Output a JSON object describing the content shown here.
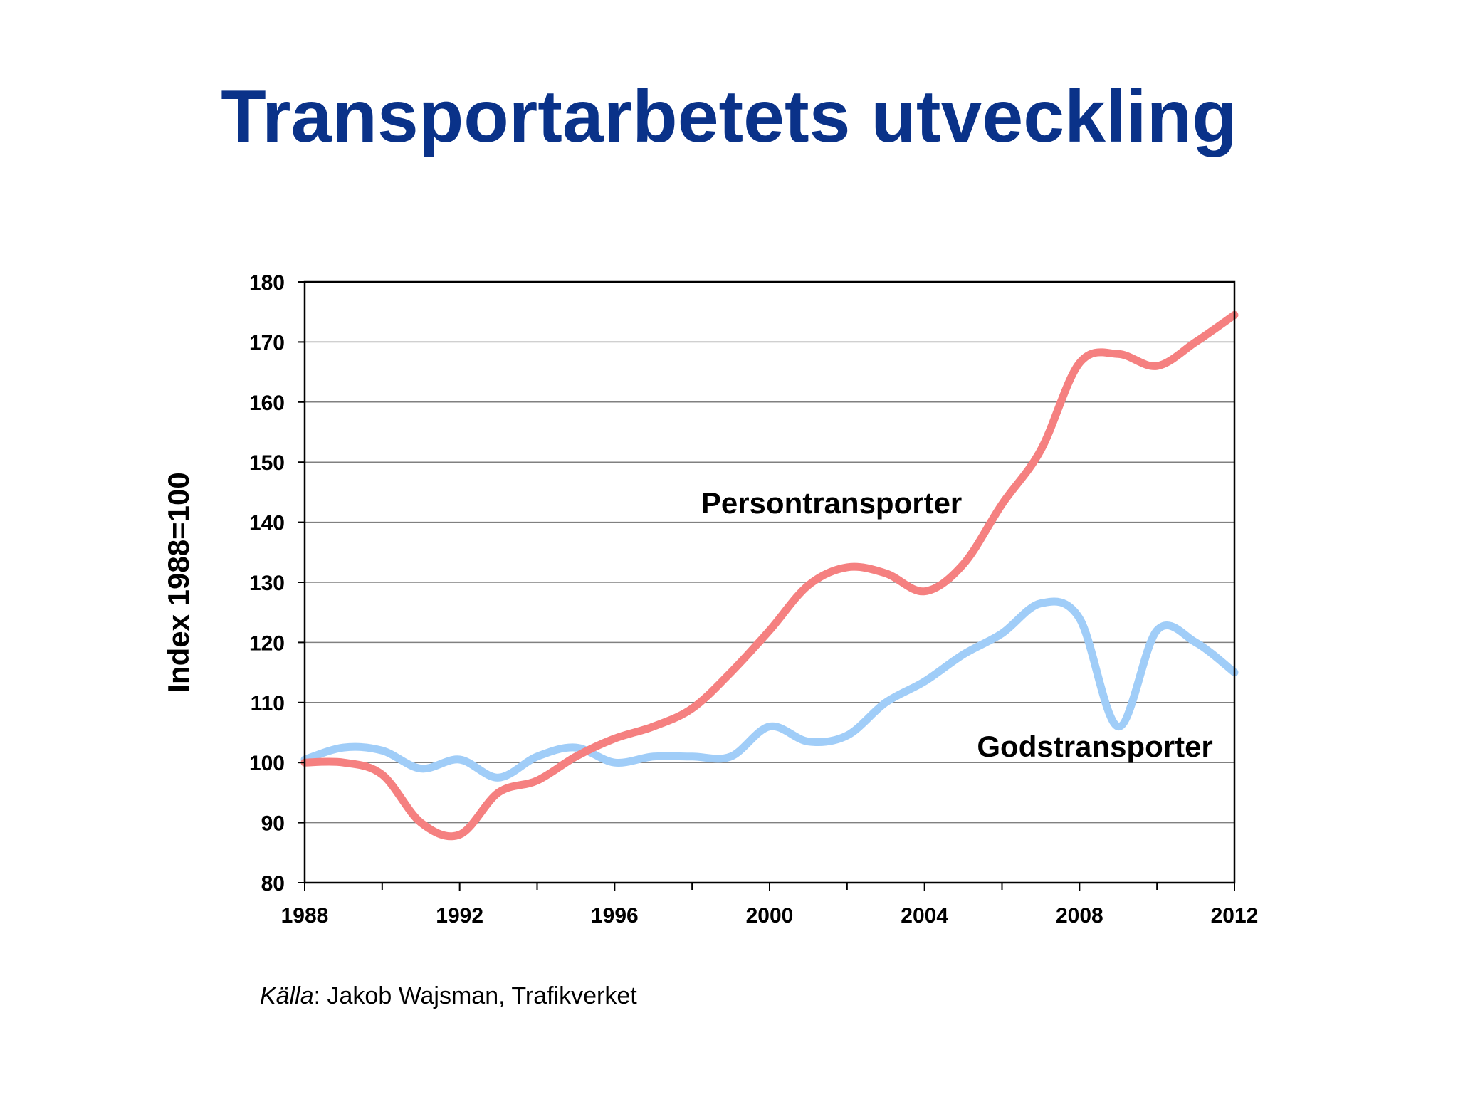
{
  "slide": {
    "title": "Transportarbetets utveckling",
    "source_label": "Källa",
    "source_separator": ": ",
    "source_text": "Jakob Wajsman, Trafikverket"
  },
  "colors": {
    "title": "#0a3289",
    "person_series": "#f58080",
    "goods_series": "#a0cdf8",
    "grid": "#808080",
    "axis": "#000000",
    "plot_background": "#ffffff"
  },
  "chart_data": {
    "type": "line",
    "title": "",
    "xlabel": "",
    "ylabel": "Index 1988=100",
    "xlim": [
      1988,
      2012
    ],
    "ylim": [
      80,
      180
    ],
    "x_ticks": [
      1988,
      1992,
      1996,
      2000,
      2004,
      2008,
      2012
    ],
    "x_minor_ticks": [
      1990,
      1994,
      1998,
      2002,
      2006,
      2010
    ],
    "y_ticks": [
      80,
      90,
      100,
      110,
      120,
      130,
      140,
      150,
      160,
      170,
      180
    ],
    "grid": true,
    "legend": "inline labels",
    "x": [
      1988,
      1989,
      1990,
      1991,
      1992,
      1993,
      1994,
      1995,
      1996,
      1997,
      1998,
      1999,
      2000,
      2001,
      2002,
      2003,
      2004,
      2005,
      2006,
      2007,
      2008,
      2009,
      2010,
      2011,
      2012
    ],
    "series": [
      {
        "name": "Persontransporter",
        "values": [
          100,
          100,
          98,
          90,
          88,
          95,
          97,
          101,
          104,
          106,
          109,
          115,
          122,
          129.5,
          132.5,
          131.5,
          128.5,
          133,
          143,
          152,
          166.5,
          168,
          166,
          170,
          174.5
        ]
      },
      {
        "name": "Godstransporter",
        "values": [
          100.5,
          102.5,
          102,
          99,
          100.5,
          97.5,
          101,
          102.5,
          100,
          101,
          101,
          101,
          106,
          103.5,
          104.5,
          110,
          113.5,
          118,
          121.5,
          126.5,
          124,
          106,
          122,
          120,
          115
        ]
      }
    ]
  }
}
